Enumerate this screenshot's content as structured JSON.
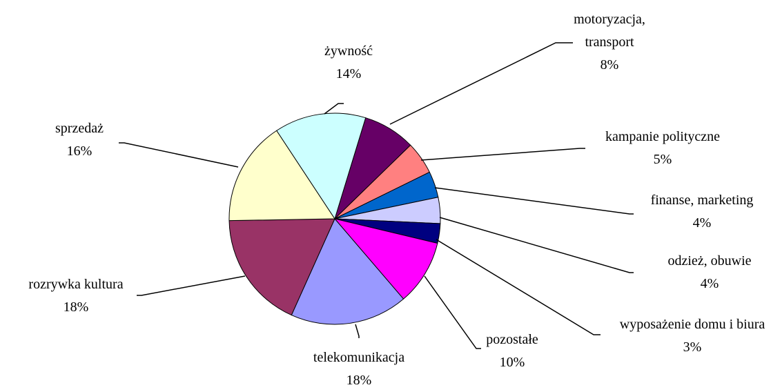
{
  "chart_data": {
    "type": "pie",
    "categories": [
      "motoryzacja, transport",
      "kampanie polityczne",
      "finanse, marketing",
      "odzież, obuwie",
      "wyposażenie domu i biura",
      "pozostałe",
      "telekomunikacja",
      "rozrywka kultura",
      "sprzedaż",
      "żywność"
    ],
    "values": [
      8,
      5,
      4,
      4,
      3,
      10,
      18,
      18,
      16,
      14
    ],
    "value_labels": [
      "8%",
      "5%",
      "4%",
      "4%",
      "3%",
      "10%",
      "18%",
      "18%",
      "16%",
      "14%"
    ],
    "colors": [
      "#660066",
      "#ff8080",
      "#0066cc",
      "#ccccff",
      "#000080",
      "#ff00ff",
      "#9999ff",
      "#993366",
      "#ffffcc",
      "#ccffff"
    ]
  }
}
